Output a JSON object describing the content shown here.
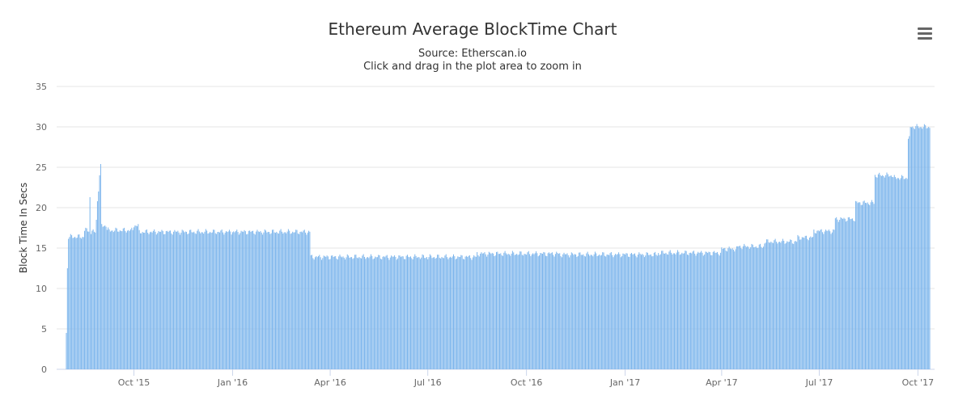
{
  "header": {
    "title": "Ethereum Average BlockTime Chart",
    "subtitle_line1": "Source: Etherscan.io",
    "subtitle_line2": "Click and drag in the plot area to zoom in"
  },
  "menu": {
    "icon": "hamburger-menu-icon"
  },
  "chart_data": {
    "type": "bar",
    "title": "Ethereum Average BlockTime Chart",
    "subtitle": "Source: Etherscan.io",
    "xlabel": "",
    "ylabel": "Block Time In Secs",
    "x_ticks": [
      "Oct '15",
      "Jan '16",
      "Apr '16",
      "Jul '16",
      "Oct '16",
      "Jan '17",
      "Apr '17",
      "Jul '17",
      "Oct '17"
    ],
    "y_ticks": [
      0,
      5,
      10,
      15,
      20,
      25,
      30,
      35
    ],
    "ylim": [
      0,
      35
    ],
    "xlim": [
      "2015-07-30",
      "2017-10-12"
    ],
    "grid": true,
    "bar_color": "#7cb5ec",
    "series": [
      {
        "values_note": "daily average block time, approximate values read from the chart",
        "segments": [
          {
            "from": "2015-07-30",
            "to": "2015-07-30",
            "value": 4.5
          },
          {
            "from": "2015-07-31",
            "to": "2015-07-31",
            "value": 12.5
          },
          {
            "from": "2015-08-01",
            "to": "2015-08-15",
            "value": 16.4
          },
          {
            "from": "2015-08-16",
            "to": "2015-08-20",
            "value": 17.2
          },
          {
            "from": "2015-08-21",
            "to": "2015-08-21",
            "value": 21.3
          },
          {
            "from": "2015-08-22",
            "to": "2015-08-26",
            "value": 17.0
          },
          {
            "from": "2015-08-27",
            "to": "2015-08-27",
            "value": 18.5
          },
          {
            "from": "2015-08-28",
            "to": "2015-08-28",
            "value": 20.8
          },
          {
            "from": "2015-08-29",
            "to": "2015-08-29",
            "value": 22.0
          },
          {
            "from": "2015-08-30",
            "to": "2015-08-30",
            "value": 24.0
          },
          {
            "from": "2015-08-31",
            "to": "2015-08-31",
            "value": 25.4
          },
          {
            "from": "2015-09-01",
            "to": "2015-09-05",
            "value": 17.8
          },
          {
            "from": "2015-09-06",
            "to": "2015-09-30",
            "value": 17.2
          },
          {
            "from": "2015-10-01",
            "to": "2015-10-05",
            "value": 17.8
          },
          {
            "from": "2015-10-06",
            "to": "2015-12-31",
            "value": 17.0
          },
          {
            "from": "2016-01-01",
            "to": "2016-03-13",
            "value": 17.0
          },
          {
            "from": "2016-03-14",
            "to": "2016-06-30",
            "value": 13.9
          },
          {
            "from": "2016-07-01",
            "to": "2016-08-15",
            "value": 13.9
          },
          {
            "from": "2016-08-16",
            "to": "2016-10-31",
            "value": 14.3
          },
          {
            "from": "2016-11-01",
            "to": "2017-01-31",
            "value": 14.2
          },
          {
            "from": "2017-02-01",
            "to": "2017-03-31",
            "value": 14.4
          },
          {
            "from": "2017-04-01",
            "to": "2017-04-15",
            "value": 14.9
          },
          {
            "from": "2017-04-16",
            "to": "2017-05-10",
            "value": 15.2
          },
          {
            "from": "2017-05-11",
            "to": "2017-06-10",
            "value": 15.8
          },
          {
            "from": "2017-06-11",
            "to": "2017-06-25",
            "value": 16.3
          },
          {
            "from": "2017-06-26",
            "to": "2017-07-15",
            "value": 17.1
          },
          {
            "from": "2017-07-16",
            "to": "2017-08-03",
            "value": 18.6
          },
          {
            "from": "2017-08-04",
            "to": "2017-08-21",
            "value": 20.6
          },
          {
            "from": "2017-08-22",
            "to": "2017-09-07",
            "value": 24.0
          },
          {
            "from": "2017-09-08",
            "to": "2017-09-21",
            "value": 23.7
          },
          {
            "from": "2017-09-22",
            "to": "2017-09-23",
            "value": 28.5
          },
          {
            "from": "2017-09-24",
            "to": "2017-10-12",
            "value": 30.0
          }
        ]
      }
    ]
  }
}
